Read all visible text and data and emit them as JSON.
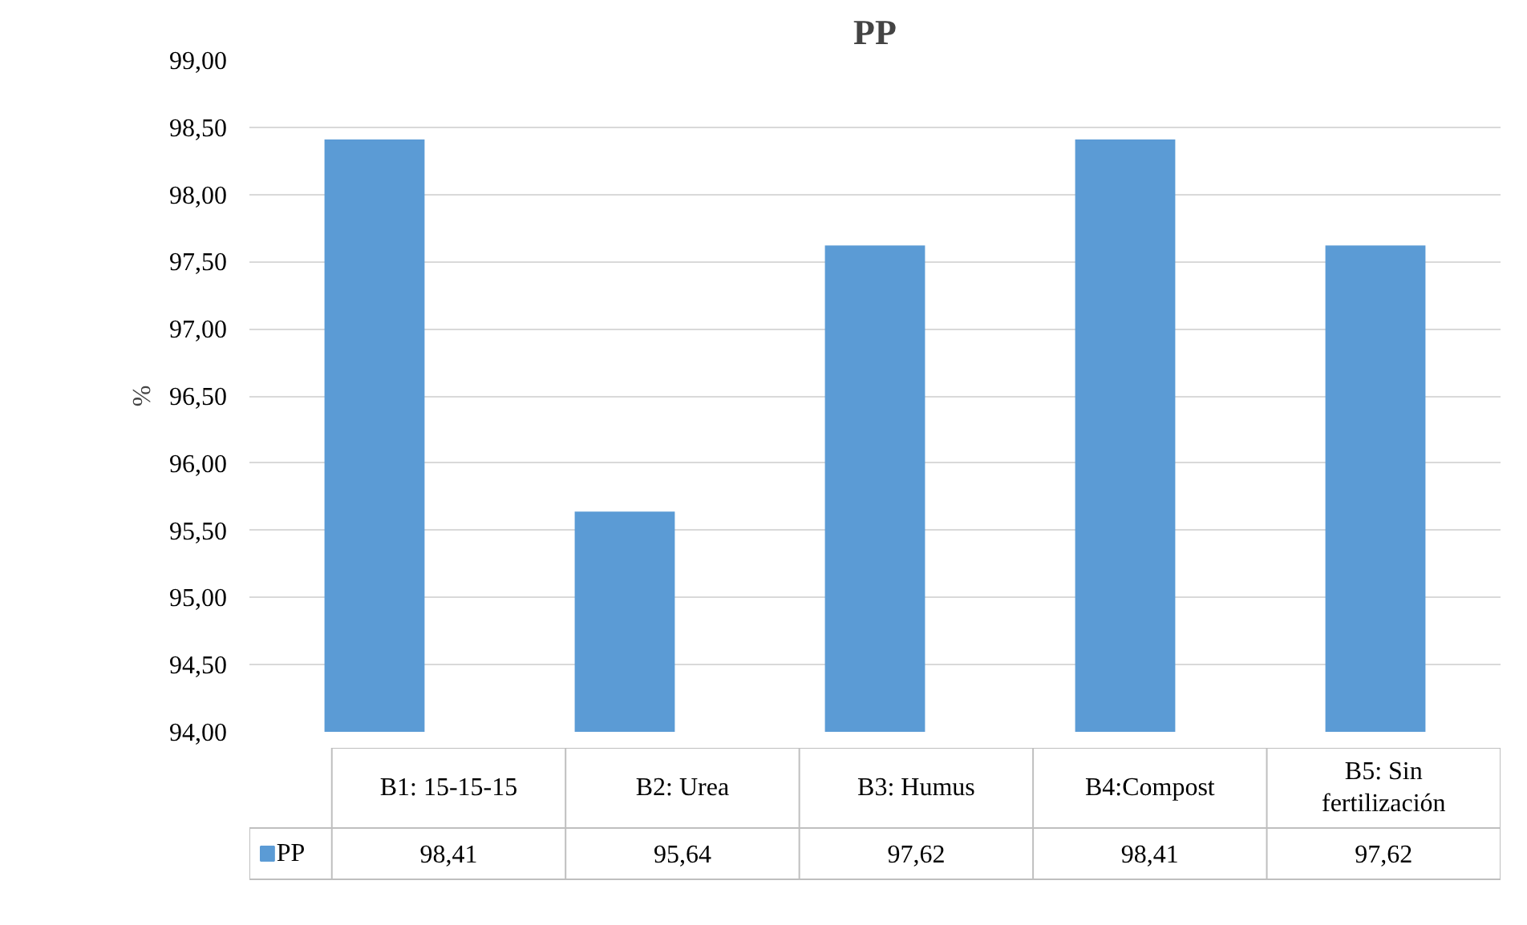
{
  "chart_data": {
    "type": "bar",
    "title": "PP",
    "ylabel": "%",
    "categories": [
      "B1: 15-15-15",
      "B2: Urea",
      "B3: Humus",
      "B4:Compost",
      "B5: Sin fertilización"
    ],
    "series": [
      {
        "name": "PP",
        "color": "#5b9bd5",
        "values": [
          98.41,
          95.64,
          97.62,
          98.41,
          97.62
        ],
        "value_labels": [
          "98,41",
          "95,64",
          "97,62",
          "98,41",
          "97,62"
        ]
      }
    ],
    "ylim": [
      94,
      99
    ],
    "yticks": [
      {
        "value": 94,
        "label": "94,00"
      },
      {
        "value": 94.5,
        "label": "94,50"
      },
      {
        "value": 95,
        "label": "95,00"
      },
      {
        "value": 95.5,
        "label": "95,50"
      },
      {
        "value": 96,
        "label": "96,00"
      },
      {
        "value": 96.5,
        "label": "96,50"
      },
      {
        "value": 97,
        "label": "97,00"
      },
      {
        "value": 97.5,
        "label": "97,50"
      },
      {
        "value": 98,
        "label": "98,00"
      },
      {
        "value": 98.5,
        "label": "98,50"
      },
      {
        "value": 99,
        "label": "99,00"
      }
    ],
    "grid": "y",
    "legend": "bottom"
  }
}
